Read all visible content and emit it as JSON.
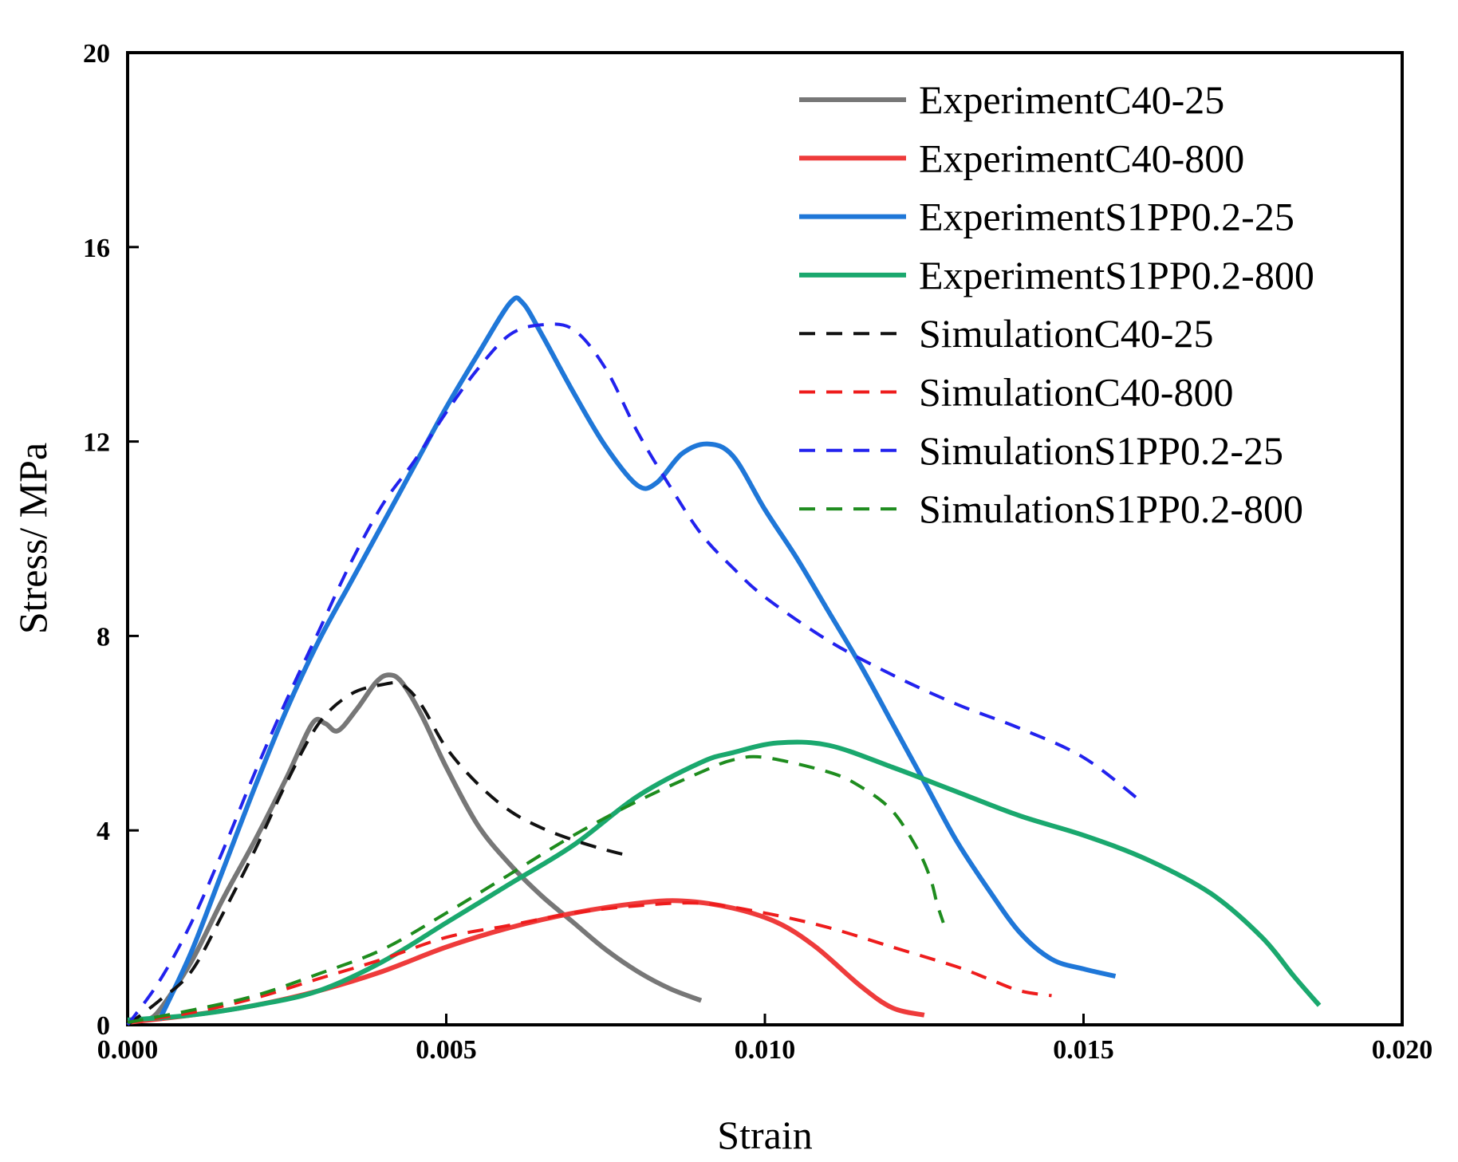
{
  "chart_data": {
    "type": "line",
    "title": "",
    "xlabel": "Strain",
    "ylabel": "Stress/ MPa",
    "xlim": [
      0,
      0.02
    ],
    "ylim": [
      0,
      20
    ],
    "x_ticks": [
      "0.000",
      "0.005",
      "0.010",
      "0.015",
      "0.020"
    ],
    "y_ticks": [
      "0",
      "4",
      "8",
      "12",
      "16",
      "20"
    ],
    "grid": false,
    "legend_position": "top-right",
    "series": [
      {
        "name": "ExperimentC40-25",
        "style": "solid",
        "color": "#777777",
        "points": [
          [
            0.0003,
            0.1
          ],
          [
            0.0005,
            0.3
          ],
          [
            0.001,
            1.3
          ],
          [
            0.0015,
            2.6
          ],
          [
            0.002,
            3.8
          ],
          [
            0.0025,
            5.1
          ],
          [
            0.0029,
            6.2
          ],
          [
            0.0031,
            6.2
          ],
          [
            0.0033,
            6.05
          ],
          [
            0.0036,
            6.5
          ],
          [
            0.0039,
            7.05
          ],
          [
            0.0041,
            7.2
          ],
          [
            0.0043,
            7.05
          ],
          [
            0.0046,
            6.4
          ],
          [
            0.005,
            5.3
          ],
          [
            0.0055,
            4.1
          ],
          [
            0.006,
            3.3
          ],
          [
            0.0065,
            2.65
          ],
          [
            0.007,
            2.1
          ],
          [
            0.0075,
            1.55
          ],
          [
            0.008,
            1.1
          ],
          [
            0.0085,
            0.75
          ],
          [
            0.009,
            0.5
          ]
        ]
      },
      {
        "name": "ExperimentC40-800",
        "style": "solid",
        "color": "#ee3b3b",
        "points": [
          [
            0.0,
            0.05
          ],
          [
            0.001,
            0.2
          ],
          [
            0.002,
            0.4
          ],
          [
            0.003,
            0.7
          ],
          [
            0.004,
            1.1
          ],
          [
            0.005,
            1.6
          ],
          [
            0.006,
            2.0
          ],
          [
            0.007,
            2.3
          ],
          [
            0.008,
            2.5
          ],
          [
            0.0087,
            2.55
          ],
          [
            0.0095,
            2.4
          ],
          [
            0.0102,
            2.1
          ],
          [
            0.0108,
            1.6
          ],
          [
            0.0115,
            0.8
          ],
          [
            0.012,
            0.35
          ],
          [
            0.0125,
            0.2
          ]
        ]
      },
      {
        "name": "ExperimentS1PP0.2-25",
        "style": "solid",
        "color": "#1f77d8",
        "points": [
          [
            0.0005,
            0.1
          ],
          [
            0.001,
            1.5
          ],
          [
            0.0015,
            3.2
          ],
          [
            0.002,
            4.9
          ],
          [
            0.0025,
            6.5
          ],
          [
            0.003,
            7.9
          ],
          [
            0.0035,
            9.1
          ],
          [
            0.004,
            10.3
          ],
          [
            0.0045,
            11.5
          ],
          [
            0.005,
            12.7
          ],
          [
            0.0055,
            13.8
          ],
          [
            0.006,
            14.85
          ],
          [
            0.0062,
            14.85
          ],
          [
            0.0065,
            14.2
          ],
          [
            0.007,
            13.0
          ],
          [
            0.0075,
            11.9
          ],
          [
            0.008,
            11.1
          ],
          [
            0.0083,
            11.15
          ],
          [
            0.0087,
            11.75
          ],
          [
            0.0091,
            11.95
          ],
          [
            0.0095,
            11.7
          ],
          [
            0.01,
            10.6
          ],
          [
            0.0105,
            9.6
          ],
          [
            0.011,
            8.5
          ],
          [
            0.0115,
            7.4
          ],
          [
            0.012,
            6.2
          ],
          [
            0.0125,
            5.0
          ],
          [
            0.013,
            3.8
          ],
          [
            0.0135,
            2.8
          ],
          [
            0.014,
            1.9
          ],
          [
            0.0145,
            1.35
          ],
          [
            0.015,
            1.15
          ],
          [
            0.0155,
            1.0
          ]
        ]
      },
      {
        "name": "ExperimentS1PP0.2-800",
        "style": "solid",
        "color": "#1aa86e",
        "points": [
          [
            0.0,
            0.1
          ],
          [
            0.001,
            0.2
          ],
          [
            0.002,
            0.4
          ],
          [
            0.003,
            0.7
          ],
          [
            0.004,
            1.3
          ],
          [
            0.005,
            2.1
          ],
          [
            0.006,
            2.9
          ],
          [
            0.007,
            3.7
          ],
          [
            0.008,
            4.7
          ],
          [
            0.009,
            5.4
          ],
          [
            0.0095,
            5.6
          ],
          [
            0.0102,
            5.8
          ],
          [
            0.011,
            5.75
          ],
          [
            0.012,
            5.3
          ],
          [
            0.013,
            4.8
          ],
          [
            0.014,
            4.3
          ],
          [
            0.015,
            3.9
          ],
          [
            0.016,
            3.4
          ],
          [
            0.017,
            2.7
          ],
          [
            0.0178,
            1.8
          ],
          [
            0.0183,
            1.0
          ],
          [
            0.0187,
            0.4
          ]
        ]
      },
      {
        "name": "SimulationC40-25",
        "style": "dashed",
        "color": "#111111",
        "points": [
          [
            0.0,
            0.0
          ],
          [
            0.0005,
            0.5
          ],
          [
            0.001,
            1.1
          ],
          [
            0.0015,
            2.3
          ],
          [
            0.002,
            3.6
          ],
          [
            0.0025,
            5.0
          ],
          [
            0.003,
            6.2
          ],
          [
            0.0035,
            6.8
          ],
          [
            0.004,
            7.0
          ],
          [
            0.0043,
            7.0
          ],
          [
            0.0046,
            6.6
          ],
          [
            0.005,
            5.7
          ],
          [
            0.0055,
            4.95
          ],
          [
            0.006,
            4.4
          ],
          [
            0.0065,
            4.05
          ],
          [
            0.007,
            3.8
          ],
          [
            0.0075,
            3.6
          ],
          [
            0.0078,
            3.5
          ]
        ]
      },
      {
        "name": "SimulationC40-800",
        "style": "dashed",
        "color": "#ee1c1c",
        "points": [
          [
            0.0,
            0.05
          ],
          [
            0.001,
            0.25
          ],
          [
            0.002,
            0.55
          ],
          [
            0.003,
            0.95
          ],
          [
            0.004,
            1.35
          ],
          [
            0.005,
            1.8
          ],
          [
            0.006,
            2.05
          ],
          [
            0.007,
            2.3
          ],
          [
            0.008,
            2.45
          ],
          [
            0.009,
            2.5
          ],
          [
            0.01,
            2.3
          ],
          [
            0.011,
            2.0
          ],
          [
            0.012,
            1.6
          ],
          [
            0.013,
            1.2
          ],
          [
            0.0135,
            0.95
          ],
          [
            0.014,
            0.7
          ],
          [
            0.0145,
            0.6
          ]
        ]
      },
      {
        "name": "SimulationS1PP0.2-25",
        "style": "dashed",
        "color": "#2222ee",
        "points": [
          [
            0.0,
            0.0
          ],
          [
            0.0005,
            0.9
          ],
          [
            0.001,
            2.1
          ],
          [
            0.0015,
            3.6
          ],
          [
            0.002,
            5.2
          ],
          [
            0.0025,
            6.7
          ],
          [
            0.003,
            8.1
          ],
          [
            0.0035,
            9.5
          ],
          [
            0.004,
            10.7
          ],
          [
            0.0045,
            11.6
          ],
          [
            0.005,
            12.6
          ],
          [
            0.0055,
            13.5
          ],
          [
            0.006,
            14.2
          ],
          [
            0.0065,
            14.4
          ],
          [
            0.007,
            14.3
          ],
          [
            0.0075,
            13.5
          ],
          [
            0.008,
            12.2
          ],
          [
            0.0085,
            11.1
          ],
          [
            0.009,
            10.1
          ],
          [
            0.0095,
            9.4
          ],
          [
            0.01,
            8.8
          ],
          [
            0.011,
            7.9
          ],
          [
            0.012,
            7.2
          ],
          [
            0.013,
            6.6
          ],
          [
            0.014,
            6.1
          ],
          [
            0.015,
            5.5
          ],
          [
            0.0159,
            4.6
          ]
        ]
      },
      {
        "name": "SimulationS1PP0.2-800",
        "style": "dashed",
        "color": "#1e8c1e",
        "points": [
          [
            0.0,
            0.05
          ],
          [
            0.001,
            0.3
          ],
          [
            0.002,
            0.6
          ],
          [
            0.003,
            1.05
          ],
          [
            0.004,
            1.55
          ],
          [
            0.005,
            2.3
          ],
          [
            0.006,
            3.1
          ],
          [
            0.007,
            3.9
          ],
          [
            0.008,
            4.6
          ],
          [
            0.009,
            5.2
          ],
          [
            0.0095,
            5.45
          ],
          [
            0.01,
            5.5
          ],
          [
            0.011,
            5.2
          ],
          [
            0.0115,
            4.9
          ],
          [
            0.012,
            4.4
          ],
          [
            0.0124,
            3.6
          ],
          [
            0.0126,
            3.0
          ],
          [
            0.0127,
            2.5
          ],
          [
            0.0128,
            2.1
          ]
        ]
      }
    ]
  }
}
